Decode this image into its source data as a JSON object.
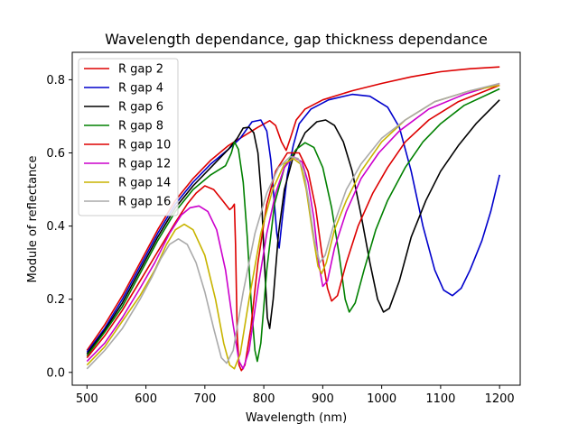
{
  "chart_data": {
    "type": "line",
    "title": "Wavelength dependance, gap thickness dependance",
    "xlabel": "Wavelength (nm)",
    "ylabel": "Module of reflectance",
    "xlim": [
      475,
      1235
    ],
    "ylim": [
      -0.035,
      0.875
    ],
    "xticks": [
      500,
      600,
      700,
      800,
      900,
      1000,
      1100,
      1200
    ],
    "yticks": [
      0.0,
      0.2,
      0.4,
      0.6,
      0.8
    ],
    "ytick_labels": [
      "0.0",
      "0.2",
      "0.4",
      "0.6",
      "0.8"
    ],
    "legend_position": "top-left",
    "grid": false,
    "series": [
      {
        "name": "R gap 2",
        "color": "#dd0000",
        "points": [
          [
            500,
            0.06
          ],
          [
            530,
            0.13
          ],
          [
            560,
            0.21
          ],
          [
            590,
            0.3
          ],
          [
            620,
            0.39
          ],
          [
            650,
            0.47
          ],
          [
            680,
            0.53
          ],
          [
            710,
            0.58
          ],
          [
            740,
            0.62
          ],
          [
            770,
            0.65
          ],
          [
            790,
            0.67
          ],
          [
            810,
            0.688
          ],
          [
            820,
            0.675
          ],
          [
            830,
            0.63
          ],
          [
            838,
            0.607
          ],
          [
            845,
            0.64
          ],
          [
            855,
            0.69
          ],
          [
            870,
            0.72
          ],
          [
            900,
            0.745
          ],
          [
            950,
            0.77
          ],
          [
            1000,
            0.79
          ],
          [
            1050,
            0.808
          ],
          [
            1100,
            0.822
          ],
          [
            1150,
            0.83
          ],
          [
            1200,
            0.835
          ]
        ]
      },
      {
        "name": "R gap 4",
        "color": "#0000cc",
        "points": [
          [
            500,
            0.055
          ],
          [
            530,
            0.12
          ],
          [
            560,
            0.2
          ],
          [
            590,
            0.29
          ],
          [
            620,
            0.38
          ],
          [
            650,
            0.46
          ],
          [
            680,
            0.52
          ],
          [
            710,
            0.57
          ],
          [
            740,
            0.61
          ],
          [
            760,
            0.64
          ],
          [
            780,
            0.685
          ],
          [
            795,
            0.69
          ],
          [
            805,
            0.66
          ],
          [
            812,
            0.58
          ],
          [
            818,
            0.46
          ],
          [
            822,
            0.38
          ],
          [
            826,
            0.34
          ],
          [
            832,
            0.43
          ],
          [
            840,
            0.54
          ],
          [
            850,
            0.62
          ],
          [
            860,
            0.68
          ],
          [
            880,
            0.72
          ],
          [
            910,
            0.745
          ],
          [
            950,
            0.76
          ],
          [
            980,
            0.755
          ],
          [
            1010,
            0.725
          ],
          [
            1030,
            0.67
          ],
          [
            1050,
            0.55
          ],
          [
            1070,
            0.4
          ],
          [
            1090,
            0.28
          ],
          [
            1105,
            0.225
          ],
          [
            1120,
            0.21
          ],
          [
            1135,
            0.23
          ],
          [
            1150,
            0.28
          ],
          [
            1170,
            0.36
          ],
          [
            1185,
            0.44
          ],
          [
            1200,
            0.54
          ]
        ]
      },
      {
        "name": "R gap 6",
        "color": "#000000",
        "points": [
          [
            500,
            0.05
          ],
          [
            530,
            0.115
          ],
          [
            560,
            0.19
          ],
          [
            590,
            0.28
          ],
          [
            620,
            0.37
          ],
          [
            650,
            0.45
          ],
          [
            680,
            0.51
          ],
          [
            710,
            0.56
          ],
          [
            740,
            0.61
          ],
          [
            755,
            0.64
          ],
          [
            765,
            0.668
          ],
          [
            775,
            0.67
          ],
          [
            783,
            0.655
          ],
          [
            790,
            0.6
          ],
          [
            796,
            0.48
          ],
          [
            801,
            0.3
          ],
          [
            806,
            0.15
          ],
          [
            810,
            0.12
          ],
          [
            816,
            0.2
          ],
          [
            825,
            0.38
          ],
          [
            835,
            0.5
          ],
          [
            850,
            0.59
          ],
          [
            870,
            0.655
          ],
          [
            890,
            0.685
          ],
          [
            905,
            0.69
          ],
          [
            920,
            0.675
          ],
          [
            935,
            0.63
          ],
          [
            950,
            0.55
          ],
          [
            965,
            0.43
          ],
          [
            980,
            0.3
          ],
          [
            993,
            0.2
          ],
          [
            1003,
            0.165
          ],
          [
            1013,
            0.175
          ],
          [
            1030,
            0.25
          ],
          [
            1050,
            0.37
          ],
          [
            1075,
            0.47
          ],
          [
            1100,
            0.55
          ],
          [
            1130,
            0.62
          ],
          [
            1160,
            0.68
          ],
          [
            1200,
            0.745
          ]
        ]
      },
      {
        "name": "R gap 8",
        "color": "#008000",
        "points": [
          [
            500,
            0.045
          ],
          [
            530,
            0.11
          ],
          [
            560,
            0.18
          ],
          [
            590,
            0.27
          ],
          [
            620,
            0.36
          ],
          [
            650,
            0.44
          ],
          [
            680,
            0.5
          ],
          [
            710,
            0.54
          ],
          [
            735,
            0.565
          ],
          [
            745,
            0.6
          ],
          [
            750,
            0.63
          ],
          [
            757,
            0.61
          ],
          [
            765,
            0.52
          ],
          [
            772,
            0.37
          ],
          [
            779,
            0.18
          ],
          [
            785,
            0.06
          ],
          [
            789,
            0.03
          ],
          [
            795,
            0.08
          ],
          [
            805,
            0.28
          ],
          [
            818,
            0.46
          ],
          [
            835,
            0.56
          ],
          [
            855,
            0.61
          ],
          [
            870,
            0.628
          ],
          [
            885,
            0.615
          ],
          [
            900,
            0.56
          ],
          [
            915,
            0.45
          ],
          [
            928,
            0.32
          ],
          [
            938,
            0.2
          ],
          [
            945,
            0.165
          ],
          [
            955,
            0.19
          ],
          [
            970,
            0.28
          ],
          [
            990,
            0.39
          ],
          [
            1010,
            0.47
          ],
          [
            1040,
            0.56
          ],
          [
            1070,
            0.63
          ],
          [
            1100,
            0.68
          ],
          [
            1140,
            0.73
          ],
          [
            1200,
            0.775
          ]
        ]
      },
      {
        "name": "R gap 10",
        "color": "#dd0000",
        "points": [
          [
            500,
            0.04
          ],
          [
            530,
            0.1
          ],
          [
            560,
            0.17
          ],
          [
            590,
            0.25
          ],
          [
            620,
            0.33
          ],
          [
            650,
            0.41
          ],
          [
            670,
            0.46
          ],
          [
            685,
            0.49
          ],
          [
            700,
            0.51
          ],
          [
            715,
            0.5
          ],
          [
            730,
            0.47
          ],
          [
            742,
            0.445
          ],
          [
            746,
            0.45
          ],
          [
            750,
            0.46
          ],
          [
            752,
            0.35
          ],
          [
            755,
            0.1
          ],
          [
            758,
            0.02
          ],
          [
            762,
            0.005
          ],
          [
            768,
            0.02
          ],
          [
            778,
            0.12
          ],
          [
            790,
            0.3
          ],
          [
            805,
            0.46
          ],
          [
            820,
            0.55
          ],
          [
            840,
            0.6
          ],
          [
            860,
            0.6
          ],
          [
            875,
            0.55
          ],
          [
            888,
            0.45
          ],
          [
            898,
            0.33
          ],
          [
            908,
            0.23
          ],
          [
            915,
            0.195
          ],
          [
            925,
            0.21
          ],
          [
            940,
            0.3
          ],
          [
            960,
            0.4
          ],
          [
            985,
            0.49
          ],
          [
            1010,
            0.56
          ],
          [
            1040,
            0.63
          ],
          [
            1080,
            0.69
          ],
          [
            1130,
            0.74
          ],
          [
            1200,
            0.785
          ]
        ]
      },
      {
        "name": "R gap 12",
        "color": "#cc00cc",
        "points": [
          [
            500,
            0.03
          ],
          [
            530,
            0.08
          ],
          [
            560,
            0.15
          ],
          [
            590,
            0.23
          ],
          [
            615,
            0.3
          ],
          [
            640,
            0.38
          ],
          [
            660,
            0.43
          ],
          [
            675,
            0.45
          ],
          [
            690,
            0.455
          ],
          [
            705,
            0.44
          ],
          [
            720,
            0.39
          ],
          [
            735,
            0.28
          ],
          [
            748,
            0.13
          ],
          [
            758,
            0.03
          ],
          [
            765,
            0.01
          ],
          [
            775,
            0.06
          ],
          [
            790,
            0.23
          ],
          [
            805,
            0.38
          ],
          [
            820,
            0.49
          ],
          [
            835,
            0.56
          ],
          [
            850,
            0.59
          ],
          [
            865,
            0.575
          ],
          [
            875,
            0.52
          ],
          [
            885,
            0.42
          ],
          [
            893,
            0.3
          ],
          [
            900,
            0.235
          ],
          [
            908,
            0.25
          ],
          [
            920,
            0.34
          ],
          [
            940,
            0.44
          ],
          [
            965,
            0.53
          ],
          [
            995,
            0.6
          ],
          [
            1030,
            0.66
          ],
          [
            1080,
            0.72
          ],
          [
            1140,
            0.76
          ],
          [
            1200,
            0.79
          ]
        ]
      },
      {
        "name": "R gap 14",
        "color": "#c8b400",
        "points": [
          [
            500,
            0.02
          ],
          [
            530,
            0.07
          ],
          [
            560,
            0.14
          ],
          [
            590,
            0.21
          ],
          [
            615,
            0.28
          ],
          [
            635,
            0.35
          ],
          [
            650,
            0.39
          ],
          [
            665,
            0.405
          ],
          [
            680,
            0.39
          ],
          [
            700,
            0.32
          ],
          [
            718,
            0.2
          ],
          [
            732,
            0.08
          ],
          [
            742,
            0.02
          ],
          [
            750,
            0.01
          ],
          [
            760,
            0.05
          ],
          [
            775,
            0.2
          ],
          [
            795,
            0.38
          ],
          [
            815,
            0.5
          ],
          [
            835,
            0.57
          ],
          [
            850,
            0.585
          ],
          [
            862,
            0.57
          ],
          [
            872,
            0.5
          ],
          [
            882,
            0.39
          ],
          [
            892,
            0.29
          ],
          [
            898,
            0.27
          ],
          [
            906,
            0.3
          ],
          [
            920,
            0.39
          ],
          [
            940,
            0.47
          ],
          [
            965,
            0.55
          ],
          [
            1000,
            0.63
          ],
          [
            1040,
            0.69
          ],
          [
            1090,
            0.74
          ],
          [
            1150,
            0.77
          ],
          [
            1200,
            0.785
          ]
        ]
      },
      {
        "name": "R gap 16",
        "color": "#aaaaaa",
        "points": [
          [
            500,
            0.01
          ],
          [
            530,
            0.06
          ],
          [
            560,
            0.12
          ],
          [
            590,
            0.2
          ],
          [
            610,
            0.26
          ],
          [
            625,
            0.31
          ],
          [
            640,
            0.35
          ],
          [
            655,
            0.365
          ],
          [
            670,
            0.35
          ],
          [
            685,
            0.3
          ],
          [
            700,
            0.22
          ],
          [
            715,
            0.12
          ],
          [
            728,
            0.04
          ],
          [
            737,
            0.025
          ],
          [
            748,
            0.06
          ],
          [
            765,
            0.22
          ],
          [
            785,
            0.38
          ],
          [
            805,
            0.49
          ],
          [
            825,
            0.56
          ],
          [
            845,
            0.59
          ],
          [
            858,
            0.585
          ],
          [
            868,
            0.55
          ],
          [
            877,
            0.46
          ],
          [
            886,
            0.36
          ],
          [
            895,
            0.3
          ],
          [
            904,
            0.32
          ],
          [
            918,
            0.4
          ],
          [
            940,
            0.5
          ],
          [
            965,
            0.57
          ],
          [
            1000,
            0.64
          ],
          [
            1040,
            0.69
          ],
          [
            1090,
            0.74
          ],
          [
            1150,
            0.77
          ],
          [
            1200,
            0.79
          ]
        ]
      }
    ]
  }
}
